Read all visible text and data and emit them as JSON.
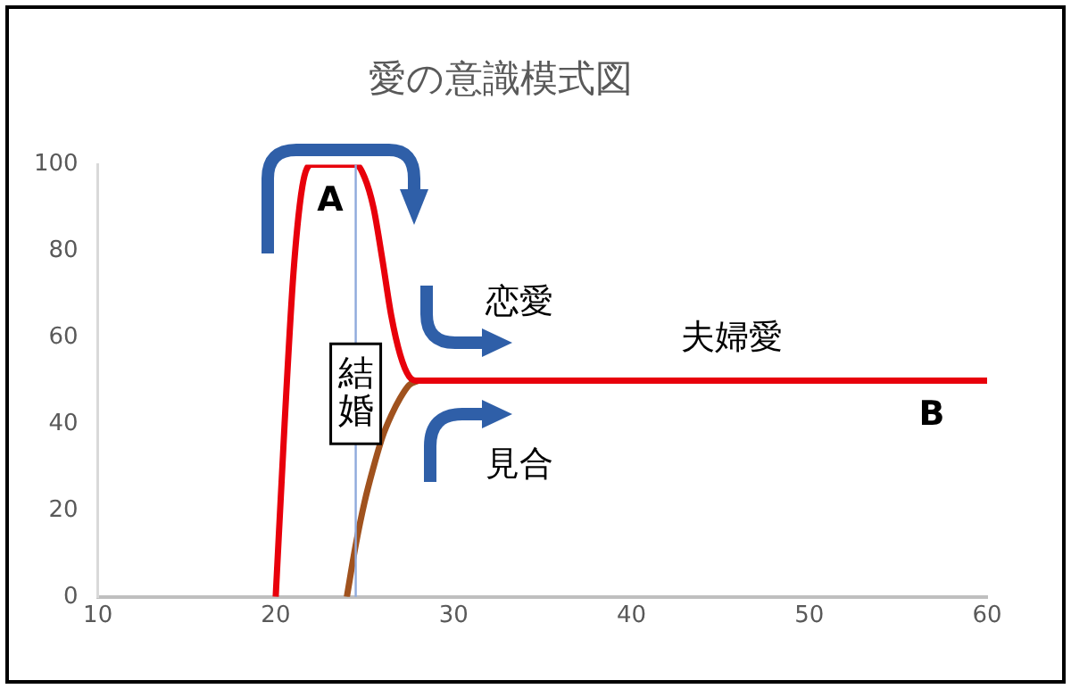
{
  "chart_data": {
    "type": "line",
    "title": "愛の意識模式図",
    "series": [
      {
        "color": "#e8000b",
        "x": [
          20,
          20.5,
          21,
          21.5,
          22,
          24.5,
          25,
          25.5,
          26,
          26.5,
          27,
          27.5,
          28,
          60
        ],
        "values": [
          0,
          40,
          75,
          95,
          100,
          100,
          97,
          90,
          78,
          65,
          56,
          51,
          50,
          50
        ]
      },
      {
        "color": "#a0521e",
        "x": [
          24,
          24.5,
          25,
          25.5,
          26,
          26.5,
          27,
          27.5,
          28
        ],
        "values": [
          0,
          12,
          22,
          30,
          37,
          42,
          46,
          49,
          50
        ]
      }
    ],
    "xlim": [
      10,
      60
    ],
    "xticks": [
      10,
      20,
      30,
      40,
      50,
      60
    ],
    "ylim": [
      0,
      100
    ],
    "yticks": [
      0,
      20,
      40,
      60,
      80,
      100
    ],
    "ref_lines": [
      {
        "axis": "x",
        "value": 24.5,
        "label": "結婚",
        "color": "#8faadc"
      }
    ],
    "annotations": [
      "A",
      "恋愛",
      "夫婦愛",
      "見合",
      "B"
    ],
    "grid": false,
    "legend": false,
    "marker": "none",
    "line_style": "solid"
  }
}
